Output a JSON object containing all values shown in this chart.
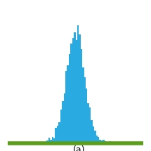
{
  "title": "",
  "label": "(a)",
  "bar_color": "#29ABE2",
  "baseline_color": "#5A9E1A",
  "background_color": "#FFFFFF",
  "border_color": "#000000",
  "gaussian_mean": 0.0,
  "gaussian_std": 0.08,
  "n_bins": 80,
  "x_range": [
    -0.6,
    0.6
  ],
  "baseline_linewidth": 4,
  "figsize": [
    2.15,
    2.15
  ],
  "dpi": 100,
  "label_fontsize": 9,
  "n_samples": 5000
}
